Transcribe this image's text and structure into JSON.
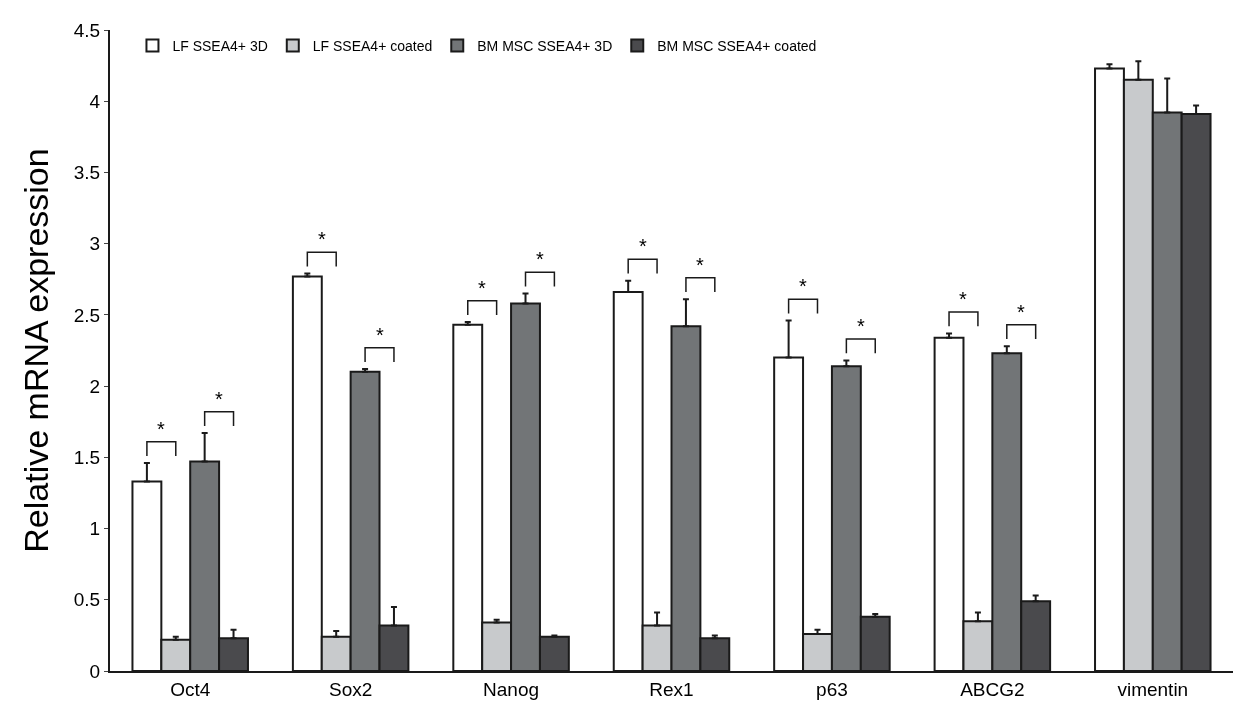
{
  "chart_data": {
    "type": "bar",
    "ylabel": "Relative mRNA expression",
    "categories": [
      "Oct4",
      "Sox2",
      "Nanog",
      "Rex1",
      "p63",
      "ABCG2",
      "vimentin"
    ],
    "series": [
      {
        "name": "LF SSEA4+ 3D",
        "color": "#ffffff",
        "values": [
          1.33,
          2.77,
          2.43,
          2.66,
          2.2,
          2.34,
          4.23
        ],
        "errors": [
          [
            1.33,
            1.46
          ],
          [
            2.77,
            2.79
          ],
          [
            2.43,
            2.45
          ],
          [
            2.66,
            2.74
          ],
          [
            2.2,
            2.46
          ],
          [
            2.34,
            2.37
          ],
          [
            4.23,
            4.26
          ]
        ]
      },
      {
        "name": "LF SSEA4+ coated",
        "color": "#c8cacc",
        "values": [
          0.22,
          0.24,
          0.34,
          0.32,
          0.26,
          0.35,
          4.15
        ],
        "errors": [
          [
            0.22,
            0.24
          ],
          [
            0.24,
            0.28
          ],
          [
            0.34,
            0.36
          ],
          [
            0.32,
            0.41
          ],
          [
            0.26,
            0.29
          ],
          [
            0.35,
            0.41
          ],
          [
            4.15,
            4.28
          ]
        ]
      },
      {
        "name": "BM MSC SSEA4+ 3D",
        "color": "#727577",
        "values": [
          1.47,
          2.1,
          2.58,
          2.42,
          2.14,
          2.23,
          3.92
        ],
        "errors": [
          [
            1.47,
            1.67
          ],
          [
            2.1,
            2.12
          ],
          [
            2.58,
            2.65
          ],
          [
            2.42,
            2.61
          ],
          [
            2.14,
            2.18
          ],
          [
            2.23,
            2.28
          ],
          [
            3.92,
            4.16
          ]
        ]
      },
      {
        "name": "BM MSC SSEA4+ coated",
        "color": "#4a4a4d",
        "values": [
          0.23,
          0.32,
          0.24,
          0.23,
          0.38,
          0.49,
          3.91
        ],
        "errors": [
          [
            0.23,
            0.29
          ],
          [
            0.32,
            0.45
          ],
          [
            0.24,
            0.25
          ],
          [
            0.23,
            0.25
          ],
          [
            0.38,
            0.4
          ],
          [
            0.49,
            0.53
          ],
          [
            3.91,
            3.97
          ]
        ]
      }
    ],
    "ylim": [
      0,
      4.5
    ],
    "yticks": [
      0,
      0.5,
      1,
      1.5,
      2,
      2.5,
      3,
      3.5,
      4,
      4.5
    ],
    "legend": "top",
    "annotations": [
      "*",
      "*",
      "*",
      "*",
      "*",
      "*",
      "*",
      "*",
      "*",
      "*",
      "*",
      "*"
    ]
  }
}
